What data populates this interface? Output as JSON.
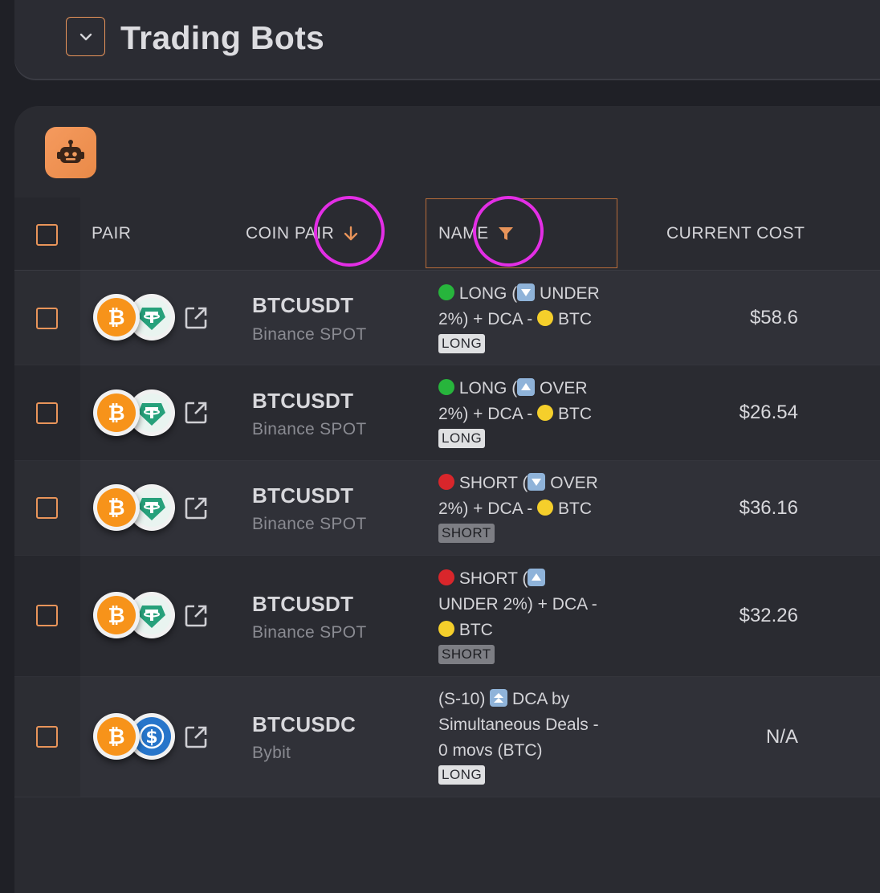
{
  "header": {
    "title": "Trading Bots"
  },
  "table": {
    "columns": {
      "pair": "PAIR",
      "coin_pair": "COIN PAIR",
      "name": "NAME",
      "current_cost": "CURRENT COST"
    },
    "rows": [
      {
        "pair": "BTCUSDT",
        "exchange": "Binance SPOT",
        "quote_coin": "tether-icon",
        "name_parts": [
          "LONG (",
          "UNDER 2%) + DCA -",
          "BTC"
        ],
        "tag": "LONG",
        "cost": "$58.6"
      },
      {
        "pair": "BTCUSDT",
        "exchange": "Binance SPOT",
        "quote_coin": "tether-icon",
        "name_parts": [
          "LONG (",
          "OVER 2%) + DCA -",
          "BTC"
        ],
        "tag": "LONG",
        "cost": "$26.54"
      },
      {
        "pair": "BTCUSDT",
        "exchange": "Binance SPOT",
        "quote_coin": "tether-icon",
        "name_parts": [
          "SHORT (",
          "OVER 2%) + DCA -",
          "BTC"
        ],
        "tag": "SHORT",
        "cost": "$36.16"
      },
      {
        "pair": "BTCUSDT",
        "exchange": "Binance SPOT",
        "quote_coin": "tether-icon",
        "name_parts": [
          "SHORT (",
          "UNDER 2%) + DCA -",
          "BTC"
        ],
        "tag": "SHORT",
        "cost": "$32.26"
      },
      {
        "pair": "BTCUSDC",
        "exchange": "Bybit",
        "quote_coin": "usdc-icon",
        "name_parts": [
          "(S-10)",
          "DCA by Simultaneous Deals - 0 movs (BTC)"
        ],
        "tag": "LONG",
        "cost": "N/A"
      }
    ]
  },
  "colors": {
    "accent": "#e8945a",
    "annotation": "#e32ee5",
    "green_dot": "#27b53c",
    "red_dot": "#d9262b",
    "yellow_dot": "#f5cf2b"
  }
}
